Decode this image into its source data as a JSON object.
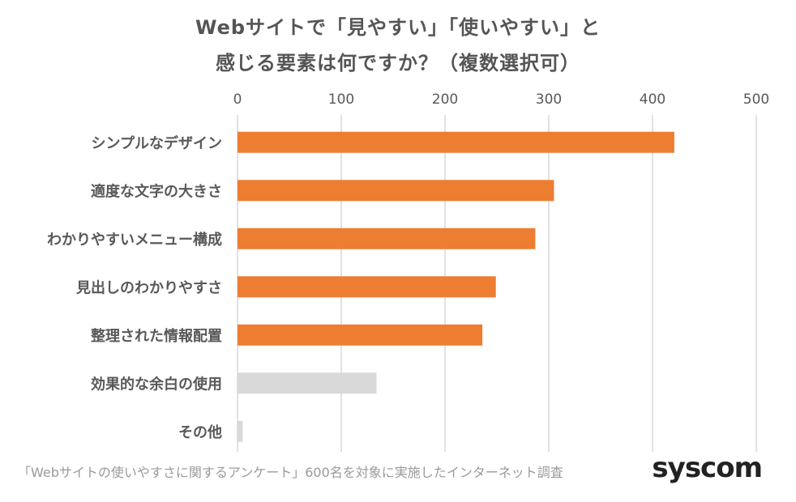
{
  "chart_data": {
    "type": "bar",
    "orientation": "horizontal",
    "title_line1": "Webサイトで「見やすい」「使いやすい」と",
    "title_line2": "感じる要素は何ですか？（複数選択可）",
    "categories": [
      "シンプルなデザイン",
      "適度な文字の大きさ",
      "わかりやすいメニュー構成",
      "見出しのわかりやすさ",
      "整理された情報配置",
      "効果的な余白の使用",
      "その他"
    ],
    "values": [
      421,
      305,
      287,
      249,
      236,
      134,
      5
    ],
    "bar_colors": [
      "#ED7D31",
      "#ED7D31",
      "#ED7D31",
      "#ED7D31",
      "#ED7D31",
      "#D9D9D9",
      "#D9D9D9"
    ],
    "xlim": [
      0,
      500
    ],
    "x_ticks": [
      "0",
      "100",
      "200",
      "300",
      "400",
      "500"
    ],
    "axis_position": "top",
    "grid": true
  },
  "footer": {
    "source": "「Webサイトの使いやすさに関するアンケート」600名を対象に実施したインターネット調査",
    "logo": "syscom"
  }
}
